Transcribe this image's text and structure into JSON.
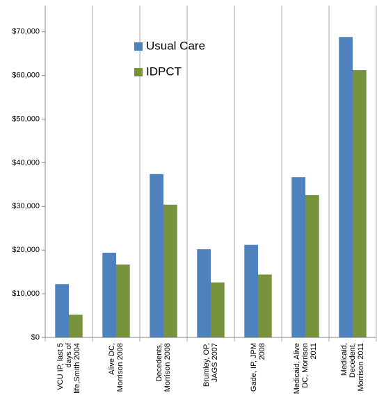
{
  "chart_data": {
    "type": "bar",
    "categories": [
      "VCU IP, last 5\ndays of\nlife,Smith 2004",
      "Alive DC,\nMorrison 2008",
      "Decedents,\nMorrison 2008",
      "Brumley, OP,\nJAGS 2007",
      "Gade, IP, JPM\n2008",
      "Medicaid, Alive\nDC, Morrison\n2011",
      "Medicaid,\nDecedent,\nMorrison 2011"
    ],
    "series": [
      {
        "name": "Usual Care",
        "color": "#4f81bd",
        "values": [
          12200,
          19400,
          37400,
          20200,
          21200,
          36700,
          68800
        ]
      },
      {
        "name": "IDPCT",
        "color": "#77933c",
        "values": [
          5200,
          16700,
          30400,
          12600,
          14400,
          32600,
          61200
        ]
      }
    ],
    "ylim": [
      0,
      76000
    ],
    "yticks": [
      {
        "value": 0,
        "label": "$0"
      },
      {
        "value": 10000,
        "label": "$10,000"
      },
      {
        "value": 20000,
        "label": "$20,000"
      },
      {
        "value": 30000,
        "label": "$30,000"
      },
      {
        "value": 40000,
        "label": "$40,000"
      },
      {
        "value": 50000,
        "label": "$50,000"
      },
      {
        "value": 60000,
        "label": "$60,000"
      },
      {
        "value": 70000,
        "label": "$70,000"
      }
    ],
    "grid": true,
    "legend": "top-center"
  }
}
